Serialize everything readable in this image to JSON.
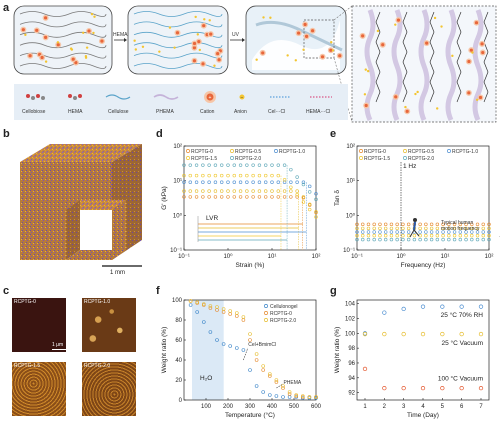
{
  "panel_labels": {
    "a": "a",
    "b": "b",
    "c": "c",
    "d": "d",
    "e": "e",
    "f": "f",
    "g": "g"
  },
  "schematic": {
    "arrow1": "HEMA",
    "arrow2": "UV",
    "legend": [
      {
        "label": "Cellobiose",
        "icon": "cellobiose-icon"
      },
      {
        "label": "HEMA",
        "icon": "hema-icon"
      },
      {
        "label": "Cellulose",
        "icon": "cellulose-icon"
      },
      {
        "label": "PHEMA",
        "icon": "phema-icon"
      },
      {
        "label": "Cation",
        "icon": "cation-icon",
        "color": "#e8663a"
      },
      {
        "label": "Anion",
        "icon": "anion-icon",
        "color": "#f3c530"
      },
      {
        "label": "Cel···Cl",
        "icon": "cel-cl-bond-icon",
        "color": "#3b8fd6"
      },
      {
        "label": "HEMA···Cl",
        "icon": "hema-cl-bond-icon",
        "color": "#d6336c"
      }
    ]
  },
  "panel_b": {
    "scale_label": "1 mm"
  },
  "panel_c": {
    "images": [
      {
        "label": "RCPTG-0",
        "color": "#3a1410"
      },
      {
        "label": "RCPTG-1.0",
        "color": "#8a5a1e"
      },
      {
        "label": "RCPTG-1.5",
        "color": "#a8621c"
      },
      {
        "label": "RCPTG-2.0",
        "color": "#9a5a1a"
      }
    ],
    "scale_label": "1 μm"
  },
  "colors": {
    "c0": "#e58a2e",
    "c05": "#e6bd2e",
    "c10": "#4e8fd1",
    "c15": "#f0c830",
    "c20": "#5fa8b8",
    "cel": "#3c85c8",
    "red": "#e4572e"
  },
  "chart_data": [
    {
      "id": "d",
      "type": "scatter",
      "xlabel": "Strain (%)",
      "ylabel": "G' (kPa)",
      "xscale": "log",
      "yscale": "log",
      "xlim": [
        0.1,
        100
      ],
      "ylim": [
        0.1,
        100
      ],
      "xticks": [
        "10⁻¹",
        "10⁰",
        "10¹",
        "10²"
      ],
      "yticks": [
        "10⁻¹",
        "10⁰",
        "10¹",
        "10²"
      ],
      "annotation": "LVR",
      "series": [
        {
          "name": "RCPTG-0",
          "color": "#e58a2e",
          "level": 3.4,
          "limit": 50
        },
        {
          "name": "RCPTG-0.5",
          "color": "#e6bd2e",
          "level": 5.0,
          "limit": 40
        },
        {
          "name": "RCPTG-1.0",
          "color": "#4e8fd1",
          "level": 9.0,
          "limit": 60
        },
        {
          "name": "RCPTG-1.5",
          "color": "#f0c830",
          "level": 14.0,
          "limit": 16
        },
        {
          "name": "RCPTG-2.0",
          "color": "#5fa8b8",
          "level": 28.0,
          "limit": 22
        }
      ]
    },
    {
      "id": "e",
      "type": "scatter",
      "xlabel": "Frequency (Hz)",
      "ylabel": "Tan δ",
      "xscale": "log",
      "yscale": "log",
      "xlim": [
        0.1,
        100
      ],
      "ylim": [
        0.1,
        100
      ],
      "xticks": [
        "10⁻¹",
        "10⁰",
        "10¹",
        "10²"
      ],
      "yticks": [
        "10⁻¹",
        "10⁰",
        "10¹",
        "10²"
      ],
      "annotations": [
        "1 Hz",
        "Typical human",
        "motion frequency"
      ],
      "series": [
        {
          "name": "RCPTG-0",
          "color": "#e58a2e",
          "level": 0.55
        },
        {
          "name": "RCPTG-0.5",
          "color": "#e6bd2e",
          "level": 0.42
        },
        {
          "name": "RCPTG-1.0",
          "color": "#4e8fd1",
          "level": 0.33
        },
        {
          "name": "RCPTG-1.5",
          "color": "#f0c830",
          "level": 0.26
        },
        {
          "name": "RCPTG-2.0",
          "color": "#5fa8b8",
          "level": 0.2
        }
      ]
    },
    {
      "id": "f",
      "type": "scatter",
      "xlabel": "Temperature (°C)",
      "ylabel": "Weight ratio (%)",
      "xlim": [
        0,
        600
      ],
      "ylim": [
        0,
        100
      ],
      "xticks": [
        100,
        200,
        300,
        400,
        500,
        600
      ],
      "yticks": [
        0,
        20,
        40,
        60,
        80,
        100
      ],
      "annotations": [
        "H₂O",
        "Cel+BmimCl",
        "PHEMA"
      ],
      "series": [
        {
          "name": "Cellulonogel",
          "color": "#3c85c8",
          "x": [
            30,
            60,
            90,
            120,
            150,
            180,
            210,
            240,
            270,
            300,
            330,
            360,
            390,
            420,
            450,
            480,
            510,
            540,
            570,
            600
          ],
          "y": [
            95,
            88,
            78,
            68,
            60,
            56,
            54,
            52,
            50,
            30,
            14,
            8,
            5,
            4,
            3,
            3,
            3,
            2,
            2,
            2
          ]
        },
        {
          "name": "RCPTG-0",
          "color": "#e58a2e",
          "x": [
            30,
            60,
            90,
            120,
            150,
            180,
            210,
            240,
            270,
            300,
            330,
            360,
            390,
            420,
            450,
            480,
            510,
            540,
            570,
            600
          ],
          "y": [
            99,
            97,
            95,
            92,
            90,
            88,
            86,
            84,
            80,
            60,
            40,
            30,
            24,
            18,
            12,
            6,
            4,
            3,
            3,
            3
          ]
        },
        {
          "name": "RCPTG-2.0",
          "color": "#e6bd2e",
          "x": [
            30,
            60,
            90,
            120,
            150,
            180,
            210,
            240,
            270,
            300,
            330,
            360,
            390,
            420,
            450,
            480,
            510,
            540,
            570,
            600
          ],
          "y": [
            99,
            98,
            96,
            94,
            93,
            91,
            89,
            87,
            83,
            66,
            46,
            34,
            26,
            20,
            14,
            8,
            5,
            4,
            3,
            3
          ]
        }
      ]
    },
    {
      "id": "g",
      "type": "scatter",
      "xlabel": "Time (Day)",
      "ylabel": "Weight ratio (%)",
      "xticks": [
        1,
        2,
        3,
        4,
        5,
        6,
        7
      ],
      "yticks": [
        92,
        94,
        96,
        98,
        100,
        102,
        104
      ],
      "ylim": [
        91,
        104.5
      ],
      "annotations": [
        "25 °C   70% RH",
        "25 °C   Vacuum",
        "100 °C   Vacuum"
      ],
      "series": [
        {
          "name": "25 °C 70% RH",
          "color": "#4e8fd1",
          "x": [
            1,
            2,
            3,
            4,
            5,
            6,
            7
          ],
          "y": [
            100,
            102.8,
            103.3,
            103.6,
            103.6,
            103.6,
            103.6
          ]
        },
        {
          "name": "25 °C Vacuum",
          "color": "#e6bd2e",
          "x": [
            1,
            2,
            3,
            4,
            5,
            6,
            7
          ],
          "y": [
            99.9,
            99.9,
            99.9,
            99.9,
            99.9,
            99.9,
            99.9
          ]
        },
        {
          "name": "100 °C Vacuum",
          "color": "#e4572e",
          "x": [
            1,
            2,
            3,
            4,
            5,
            6,
            7
          ],
          "y": [
            95.2,
            92.6,
            92.6,
            92.6,
            92.6,
            92.6,
            92.6
          ]
        }
      ]
    }
  ]
}
